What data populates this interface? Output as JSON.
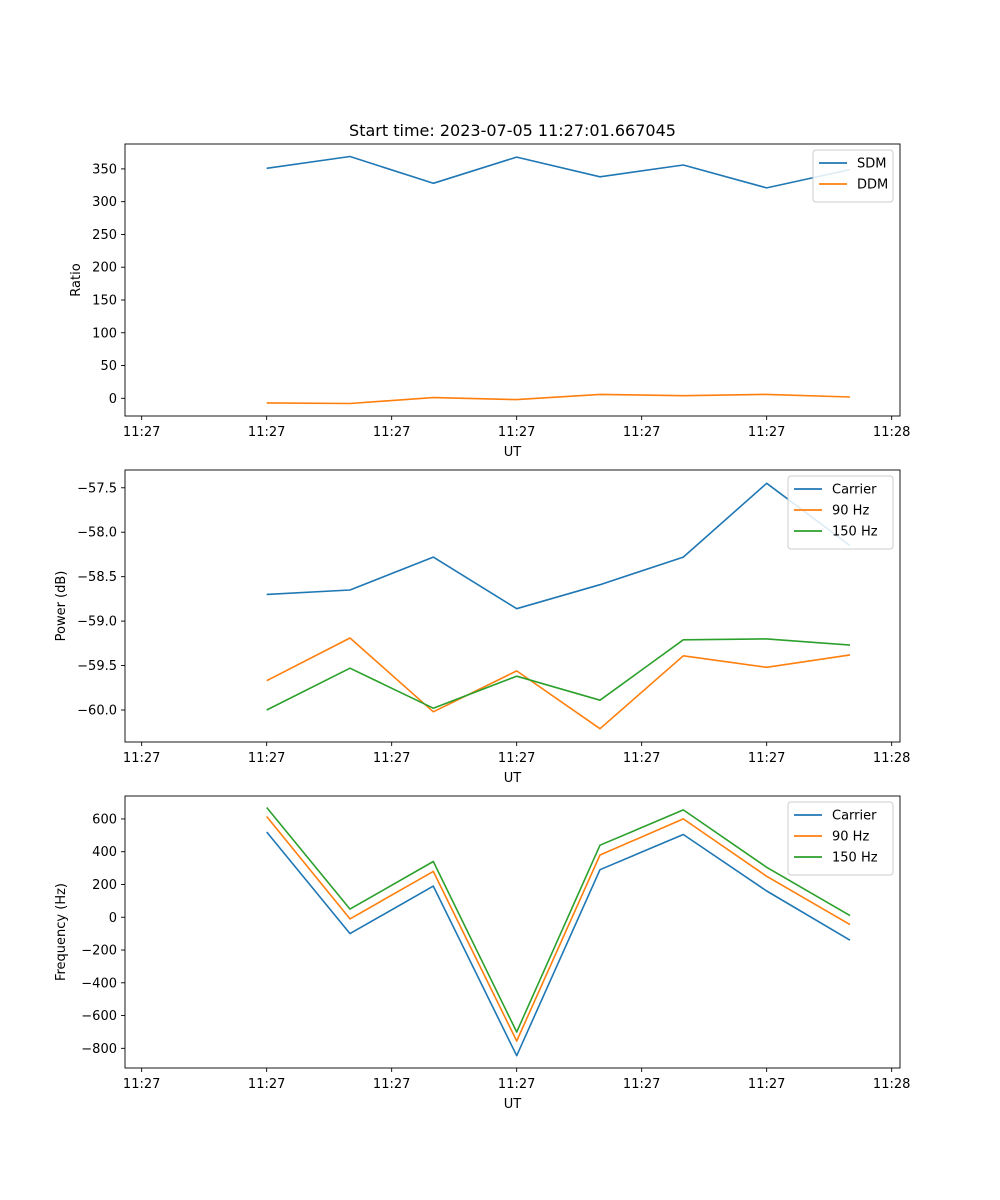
{
  "figure": {
    "title": "Start time: 2023-07-05 11:27:01.667045"
  },
  "chart_data": [
    {
      "type": "line",
      "title": "Start time: 2023-07-05 11:27:01.667045",
      "xlabel": "UT",
      "ylabel": "Ratio",
      "x_tick_labels": [
        "11:27",
        "11:27",
        "11:27",
        "11:27",
        "11:27",
        "11:27",
        "11:28"
      ],
      "y_ticks": [
        0,
        50,
        100,
        150,
        200,
        250,
        300,
        350
      ],
      "y_tick_labels": [
        "0",
        "50",
        "100",
        "150",
        "200",
        "250",
        "300",
        "350"
      ],
      "ylim": [
        -27,
        388
      ],
      "x": [
        1,
        2,
        3,
        4,
        5,
        6,
        7,
        8
      ],
      "xlim": [
        -0.7,
        8.6
      ],
      "x_tick_positions": [
        -0.5,
        1.0,
        2.5,
        4.0,
        5.5,
        7.0,
        8.5
      ],
      "legend_position": "top-right",
      "grid": false,
      "series": [
        {
          "name": "SDM",
          "color": "#1f77b4",
          "values": [
            351,
            369,
            328,
            368,
            338,
            356,
            321,
            349
          ]
        },
        {
          "name": "DDM",
          "color": "#ff7f0e",
          "values": [
            -7,
            -8,
            1,
            -2,
            6,
            4,
            6,
            2
          ]
        }
      ]
    },
    {
      "type": "line",
      "title": "",
      "xlabel": "UT",
      "ylabel": "Power (dB)",
      "x_tick_labels": [
        "11:27",
        "11:27",
        "11:27",
        "11:27",
        "11:27",
        "11:27",
        "11:28"
      ],
      "y_ticks": [
        -60.0,
        -59.5,
        -59.0,
        -58.5,
        -58.0,
        -57.5
      ],
      "y_tick_labels": [
        "−60.0",
        "−59.5",
        "−59.0",
        "−58.5",
        "−58.0",
        "−57.5"
      ],
      "ylim": [
        -60.36,
        -57.3
      ],
      "x": [
        1,
        2,
        3,
        4,
        5,
        6,
        7,
        8
      ],
      "xlim": [
        -0.7,
        8.6
      ],
      "x_tick_positions": [
        -0.5,
        1.0,
        2.5,
        4.0,
        5.5,
        7.0,
        8.5
      ],
      "legend_position": "top-right",
      "grid": false,
      "series": [
        {
          "name": "Carrier",
          "color": "#1f77b4",
          "values": [
            -58.7,
            -58.65,
            -58.28,
            -58.86,
            -58.59,
            -58.28,
            -57.45,
            -58.15
          ]
        },
        {
          "name": "90 Hz",
          "color": "#ff7f0e",
          "values": [
            -59.67,
            -59.19,
            -60.02,
            -59.56,
            -60.21,
            -59.39,
            -59.52,
            -59.38
          ]
        },
        {
          "name": "150 Hz",
          "color": "#2ca02c",
          "values": [
            -60.0,
            -59.53,
            -59.98,
            -59.62,
            -59.89,
            -59.21,
            -59.2,
            -59.27
          ]
        }
      ]
    },
    {
      "type": "line",
      "title": "",
      "xlabel": "UT",
      "ylabel": "Frequency (Hz)",
      "x_tick_labels": [
        "11:27",
        "11:27",
        "11:27",
        "11:27",
        "11:27",
        "11:27",
        "11:28"
      ],
      "y_ticks": [
        -800,
        -600,
        -400,
        -200,
        0,
        200,
        400,
        600
      ],
      "y_tick_labels": [
        "−800",
        "−600",
        "−400",
        "−200",
        "0",
        "200",
        "400",
        "600"
      ],
      "ylim": [
        -920,
        740
      ],
      "x": [
        1,
        2,
        3,
        4,
        5,
        6,
        7,
        8
      ],
      "xlim": [
        -0.7,
        8.6
      ],
      "x_tick_positions": [
        -0.5,
        1.0,
        2.5,
        4.0,
        5.5,
        7.0,
        8.5
      ],
      "legend_position": "top-right",
      "grid": false,
      "series": [
        {
          "name": "Carrier",
          "color": "#1f77b4",
          "values": [
            520,
            -100,
            190,
            -845,
            290,
            505,
            160,
            -140
          ]
        },
        {
          "name": "90 Hz",
          "color": "#ff7f0e",
          "values": [
            615,
            -10,
            280,
            -755,
            380,
            600,
            250,
            -45
          ]
        },
        {
          "name": "150 Hz",
          "color": "#2ca02c",
          "values": [
            670,
            50,
            340,
            -700,
            440,
            655,
            305,
            10
          ]
        }
      ]
    }
  ]
}
